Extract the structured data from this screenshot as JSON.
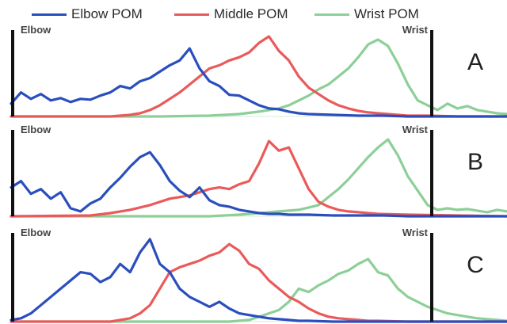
{
  "chart_data": {
    "type": "line",
    "legend": {
      "placement": "top",
      "entries": [
        "Elbow POM",
        "Middle POM",
        "Wrist POM"
      ]
    },
    "x_domain": [
      0,
      100
    ],
    "y_domain": [
      0,
      100
    ],
    "series_colors": {
      "Elbow POM": "#2a4ebd",
      "Middle POM": "#ea5a5a",
      "Wrist POM": "#8ccf97"
    },
    "panels": [
      {
        "label": "A",
        "left_label": "Elbow",
        "right_label": "Wrist",
        "series": [
          {
            "name": "Elbow POM",
            "x": [
              0,
              2,
              4,
              6,
              8,
              10,
              12,
              14,
              16,
              18,
              20,
              22,
              24,
              26,
              28,
              30,
              32,
              34,
              36,
              38,
              40,
              42,
              44,
              46,
              48,
              50,
              52,
              54,
              56,
              58,
              60,
              65,
              70,
              75,
              80,
              90,
              100
            ],
            "y": [
              16,
              30,
              22,
              28,
              20,
              23,
              18,
              22,
              21,
              26,
              30,
              38,
              35,
              44,
              48,
              56,
              64,
              70,
              85,
              60,
              44,
              38,
              27,
              26,
              20,
              14,
              10,
              9,
              6,
              4,
              3,
              2,
              1,
              1,
              0,
              0,
              0
            ]
          },
          {
            "name": "Middle POM",
            "x": [
              0,
              20,
              24,
              26,
              28,
              30,
              32,
              34,
              36,
              38,
              40,
              42,
              44,
              46,
              48,
              50,
              52,
              54,
              56,
              58,
              60,
              62,
              64,
              66,
              68,
              70,
              72,
              74,
              76,
              78,
              80,
              84,
              90,
              100
            ],
            "y": [
              0,
              0,
              2,
              4,
              8,
              14,
              22,
              30,
              40,
              50,
              60,
              64,
              70,
              74,
              80,
              92,
              100,
              82,
              70,
              50,
              36,
              28,
              20,
              14,
              10,
              7,
              5,
              4,
              3,
              2,
              1,
              1,
              0,
              0
            ]
          },
          {
            "name": "Wrist POM",
            "x": [
              0,
              30,
              40,
              46,
              50,
              54,
              56,
              58,
              60,
              62,
              64,
              66,
              68,
              70,
              72,
              74,
              76,
              78,
              80,
              82,
              84,
              86,
              88,
              90,
              92,
              94,
              96,
              98,
              100
            ],
            "y": [
              0,
              0,
              1,
              3,
              6,
              10,
              14,
              20,
              26,
              34,
              40,
              50,
              60,
              74,
              90,
              96,
              88,
              66,
              40,
              20,
              14,
              8,
              16,
              10,
              13,
              8,
              6,
              4,
              3
            ]
          }
        ]
      },
      {
        "label": "B",
        "left_label": "Elbow",
        "right_label": "Wrist",
        "series": [
          {
            "name": "Elbow POM",
            "x": [
              0,
              2,
              4,
              6,
              8,
              10,
              12,
              14,
              16,
              18,
              20,
              22,
              24,
              26,
              28,
              30,
              32,
              34,
              36,
              38,
              40,
              42,
              44,
              46,
              48,
              50,
              52,
              54,
              56,
              60,
              65,
              70,
              75,
              80,
              90,
              100
            ],
            "y": [
              36,
              44,
              28,
              34,
              22,
              30,
              10,
              6,
              16,
              22,
              36,
              48,
              62,
              74,
              80,
              64,
              44,
              32,
              24,
              36,
              20,
              14,
              12,
              8,
              6,
              4,
              3,
              3,
              2,
              2,
              1,
              1,
              1,
              0,
              0,
              0
            ]
          },
          {
            "name": "Middle POM",
            "x": [
              0,
              16,
              20,
              24,
              28,
              32,
              36,
              38,
              40,
              42,
              44,
              46,
              48,
              50,
              52,
              54,
              56,
              58,
              60,
              62,
              64,
              66,
              68,
              70,
              72,
              74,
              80,
              90,
              100
            ],
            "y": [
              0,
              1,
              4,
              8,
              14,
              22,
              26,
              30,
              34,
              36,
              34,
              40,
              44,
              66,
              94,
              82,
              86,
              60,
              34,
              18,
              12,
              8,
              6,
              5,
              4,
              3,
              2,
              1,
              0
            ]
          },
          {
            "name": "Wrist POM",
            "x": [
              0,
              40,
              46,
              50,
              54,
              58,
              62,
              64,
              66,
              68,
              70,
              72,
              74,
              76,
              78,
              80,
              82,
              84,
              86,
              88,
              90,
              92,
              94,
              96,
              98,
              100
            ],
            "y": [
              0,
              0,
              2,
              4,
              6,
              8,
              14,
              24,
              34,
              46,
              60,
              74,
              86,
              96,
              76,
              50,
              32,
              14,
              8,
              10,
              8,
              9,
              7,
              5,
              8,
              6
            ]
          }
        ]
      },
      {
        "label": "C",
        "left_label": "Elbow",
        "right_label": "Wrist",
        "series": [
          {
            "name": "Elbow POM",
            "x": [
              0,
              2,
              4,
              6,
              8,
              10,
              12,
              14,
              16,
              18,
              20,
              22,
              24,
              26,
              28,
              30,
              32,
              34,
              36,
              38,
              40,
              42,
              44,
              46,
              48,
              50,
              52,
              54,
              56,
              58,
              60,
              65,
              70,
              80,
              100
            ],
            "y": [
              2,
              4,
              10,
              20,
              30,
              40,
              50,
              60,
              58,
              48,
              54,
              70,
              60,
              84,
              100,
              70,
              60,
              40,
              30,
              24,
              18,
              24,
              16,
              10,
              8,
              6,
              4,
              3,
              2,
              1,
              1,
              0,
              0,
              0,
              0
            ]
          },
          {
            "name": "Middle POM",
            "x": [
              0,
              20,
              24,
              26,
              28,
              30,
              32,
              34,
              36,
              38,
              40,
              42,
              44,
              46,
              48,
              50,
              52,
              54,
              56,
              58,
              60,
              62,
              64,
              66,
              68,
              70,
              72,
              74,
              80,
              90,
              100
            ],
            "y": [
              0,
              0,
              4,
              10,
              20,
              40,
              60,
              66,
              70,
              74,
              80,
              84,
              94,
              86,
              70,
              64,
              50,
              40,
              30,
              24,
              16,
              10,
              6,
              4,
              3,
              2,
              1,
              1,
              0,
              0,
              0
            ]
          },
          {
            "name": "Wrist POM",
            "x": [
              0,
              44,
              48,
              50,
              52,
              54,
              56,
              58,
              60,
              62,
              64,
              66,
              68,
              70,
              72,
              74,
              76,
              78,
              80,
              82,
              84,
              86,
              88,
              90,
              92,
              94,
              96,
              98,
              100
            ],
            "y": [
              0,
              0,
              2,
              6,
              10,
              14,
              24,
              40,
              36,
              44,
              50,
              58,
              62,
              70,
              76,
              60,
              56,
              40,
              30,
              24,
              18,
              14,
              10,
              8,
              6,
              4,
              3,
              2,
              1
            ]
          }
        ]
      }
    ]
  }
}
